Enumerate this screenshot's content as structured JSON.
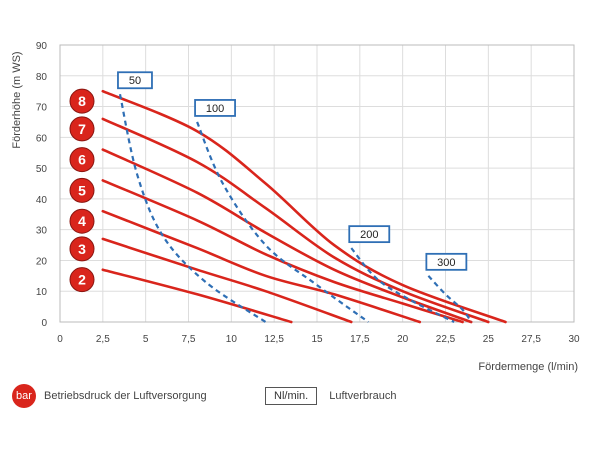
{
  "chart_data": {
    "type": "line",
    "xlabel": "Fördermenge (l/min)",
    "ylabel": "Förderhöhe (m WS)",
    "xlim": [
      0,
      30
    ],
    "ylim": [
      0,
      90
    ],
    "x_ticks": [
      "0",
      "2,5",
      "5",
      "7,5",
      "10",
      "12,5",
      "15",
      "17,5",
      "20",
      "22,5",
      "25",
      "27,5",
      "30"
    ],
    "y_ticks": [
      "0",
      "10",
      "20",
      "30",
      "40",
      "50",
      "60",
      "70",
      "80",
      "90"
    ],
    "grid": true,
    "pressure_series": [
      {
        "label": "8",
        "color": "#d9251c",
        "points": [
          [
            2.5,
            75
          ],
          [
            8,
            62
          ],
          [
            12,
            45
          ],
          [
            16,
            25
          ],
          [
            20,
            12
          ],
          [
            26,
            0
          ]
        ]
      },
      {
        "label": "7",
        "color": "#d9251c",
        "points": [
          [
            2.5,
            66
          ],
          [
            8,
            52
          ],
          [
            12,
            37
          ],
          [
            16,
            21
          ],
          [
            20,
            10
          ],
          [
            25,
            0
          ]
        ]
      },
      {
        "label": "6",
        "color": "#d9251c",
        "points": [
          [
            2.5,
            56
          ],
          [
            8,
            42
          ],
          [
            12,
            29
          ],
          [
            16,
            17
          ],
          [
            20,
            8
          ],
          [
            24,
            0
          ]
        ]
      },
      {
        "label": "5",
        "color": "#d9251c",
        "points": [
          [
            2.5,
            46
          ],
          [
            8,
            33
          ],
          [
            12,
            22
          ],
          [
            16,
            13
          ],
          [
            20,
            6
          ],
          [
            23.5,
            0
          ]
        ]
      },
      {
        "label": "4",
        "color": "#d9251c",
        "points": [
          [
            2.5,
            36
          ],
          [
            8,
            24
          ],
          [
            12,
            15
          ],
          [
            16,
            9
          ],
          [
            21,
            0
          ]
        ]
      },
      {
        "label": "3",
        "color": "#d9251c",
        "points": [
          [
            2.5,
            27
          ],
          [
            8,
            17
          ],
          [
            12,
            10
          ],
          [
            17,
            0
          ]
        ]
      },
      {
        "label": "2",
        "color": "#d9251c",
        "points": [
          [
            2.5,
            17
          ],
          [
            8,
            9
          ],
          [
            13.5,
            0
          ]
        ]
      }
    ],
    "air_series": [
      {
        "label": "50",
        "color": "#2f6fb5",
        "points": [
          [
            3.5,
            74
          ],
          [
            4.5,
            48
          ],
          [
            6,
            28
          ],
          [
            8.5,
            13
          ],
          [
            12,
            0
          ]
        ]
      },
      {
        "label": "100",
        "color": "#2f6fb5",
        "points": [
          [
            8,
            65
          ],
          [
            9.5,
            45
          ],
          [
            12,
            25
          ],
          [
            15,
            12
          ],
          [
            18,
            0
          ]
        ]
      },
      {
        "label": "200",
        "color": "#2f6fb5",
        "points": [
          [
            17,
            24
          ],
          [
            18.5,
            14
          ],
          [
            20.5,
            7
          ],
          [
            23,
            0
          ]
        ]
      },
      {
        "label": "300",
        "color": "#2f6fb5",
        "points": [
          [
            21.5,
            15
          ],
          [
            22.5,
            9
          ],
          [
            23.5,
            4
          ],
          [
            24,
            0
          ]
        ]
      }
    ]
  },
  "legend": {
    "bar_badge": "bar",
    "bar_text": "Betriebsdruck der Luftversorgung",
    "nl_box": "Nl/min.",
    "nl_text": "Luftverbrauch"
  },
  "colors": {
    "pressure": "#d9251c",
    "air": "#2f6fb5",
    "grid": "#dddddd"
  }
}
